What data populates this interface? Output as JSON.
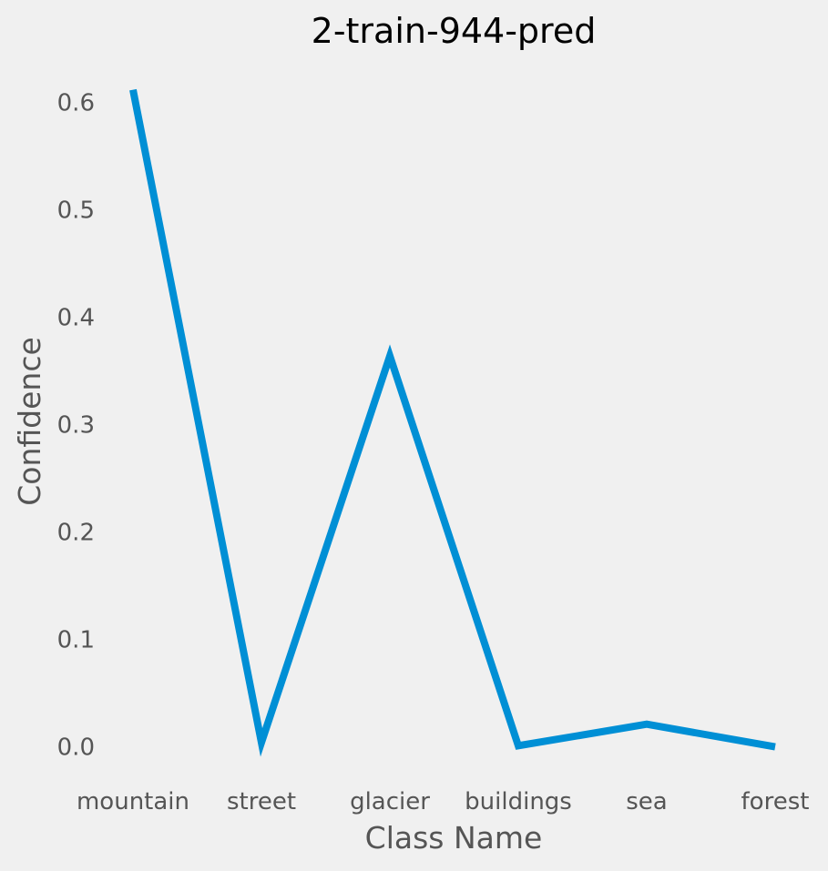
{
  "chart_data": {
    "type": "line",
    "title": "2-train-944-pred",
    "xlabel": "Class Name",
    "ylabel": "Confidence",
    "categories": [
      "mountain",
      "street",
      "glacier",
      "buildings",
      "sea",
      "forest"
    ],
    "values": [
      0.612,
      0.004,
      0.364,
      0.001,
      0.021,
      0.0
    ],
    "yticks": [
      "0.0",
      "0.1",
      "0.2",
      "0.3",
      "0.4",
      "0.5",
      "0.6"
    ],
    "ylim": [
      -0.025,
      0.632
    ],
    "grid": false,
    "legend": "none",
    "line_color": "#008fd5",
    "background_color": "#f0f0f0",
    "text_color": "#555555"
  }
}
